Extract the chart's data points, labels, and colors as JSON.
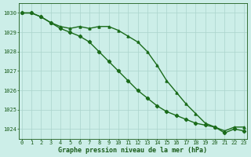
{
  "hours": [
    0,
    1,
    2,
    3,
    4,
    5,
    6,
    7,
    8,
    9,
    10,
    11,
    12,
    13,
    14,
    15,
    16,
    17,
    18,
    19,
    20,
    21,
    22,
    23
  ],
  "series1": [
    1030.0,
    1030.0,
    1029.8,
    1029.5,
    1029.3,
    1029.2,
    1029.3,
    1029.2,
    1029.3,
    1029.3,
    1029.1,
    1028.8,
    1028.5,
    1028.0,
    1027.3,
    1026.5,
    1025.9,
    1025.3,
    1024.8,
    1024.3,
    1024.1,
    1023.9,
    1024.1,
    1024.1
  ],
  "series2": [
    1030.0,
    1030.0,
    1029.8,
    1029.5,
    1029.2,
    1029.0,
    1028.8,
    1028.5,
    1028.0,
    1027.5,
    1027.0,
    1026.5,
    1026.0,
    1025.6,
    1025.2,
    1024.9,
    1024.7,
    1024.5,
    1024.3,
    1024.2,
    1024.1,
    1023.8,
    1024.0,
    1023.9
  ],
  "ylim": [
    1023.5,
    1030.5
  ],
  "yticks": [
    1024,
    1025,
    1026,
    1027,
    1028,
    1029,
    1030
  ],
  "xlim": [
    -0.3,
    23.3
  ],
  "xticks": [
    0,
    1,
    2,
    3,
    4,
    5,
    6,
    7,
    8,
    9,
    10,
    11,
    12,
    13,
    14,
    15,
    16,
    17,
    18,
    19,
    20,
    21,
    22,
    23
  ],
  "xlabel": "Graphe pression niveau de la mer (hPa)",
  "line_color1": "#1a6b1a",
  "line_color2": "#1a6b1a",
  "bg_color": "#cceee8",
  "grid_color": "#aad4cc",
  "text_color": "#1a5c1a",
  "marker1": "^",
  "marker2": "D",
  "linewidth": 1.0,
  "markersize": 2.2,
  "tick_fontsize": 5.0,
  "label_fontsize": 6.0
}
